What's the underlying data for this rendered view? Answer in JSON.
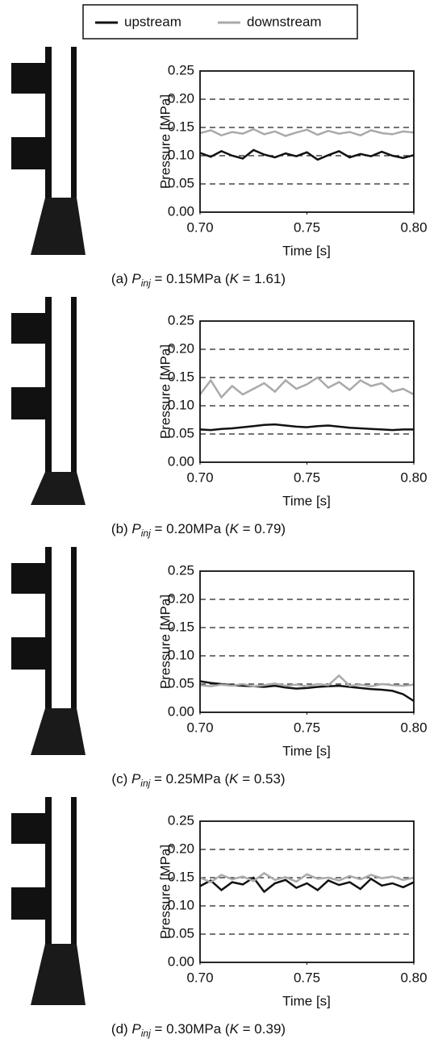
{
  "chart_data": [
    {
      "type": "line",
      "ylabel": "Pressure [MPa]",
      "xlabel": "Time [s]",
      "caption_parts": [
        "(a) ",
        "P",
        "inj",
        " = 0.15MPa (",
        "K",
        " = 1.61)"
      ],
      "xlim": [
        0.7,
        0.8
      ],
      "xticks": [
        {
          "value": 0.7,
          "label": "0.70"
        },
        0.75,
        {
          "value": 0.8,
          "label": "0.80"
        }
      ],
      "ylim": [
        0,
        0.25
      ],
      "yticks": [
        {
          "value": 0,
          "label": "0.00"
        },
        0.05,
        {
          "value": 0.1,
          "label": "0.10"
        },
        0.15,
        {
          "value": 0.2,
          "label": "0.20"
        },
        0.25
      ],
      "grid": true,
      "x": [
        0.7,
        0.705,
        0.71,
        0.715,
        0.72,
        0.725,
        0.73,
        0.735,
        0.74,
        0.745,
        0.75,
        0.755,
        0.76,
        0.765,
        0.77,
        0.775,
        0.78,
        0.785,
        0.79,
        0.795,
        0.8
      ],
      "series": [
        {
          "name": "upstream",
          "color": "#111111",
          "values": [
            0.105,
            0.098,
            0.108,
            0.1,
            0.095,
            0.11,
            0.102,
            0.097,
            0.104,
            0.099,
            0.106,
            0.093,
            0.101,
            0.108,
            0.097,
            0.103,
            0.099,
            0.107,
            0.1,
            0.096,
            0.101
          ]
        },
        {
          "name": "downstream",
          "color": "#aaaaaa",
          "values": [
            0.14,
            0.145,
            0.136,
            0.142,
            0.139,
            0.147,
            0.138,
            0.143,
            0.135,
            0.141,
            0.146,
            0.137,
            0.144,
            0.139,
            0.142,
            0.136,
            0.145,
            0.14,
            0.138,
            0.143,
            0.141
          ]
        }
      ]
    },
    {
      "type": "line",
      "ylabel": "Pressure [MPa]",
      "xlabel": "Time [s]",
      "caption_parts": [
        "(b) ",
        "P",
        "inj",
        " = 0.20MPa (",
        "K",
        " = 0.79)"
      ],
      "xlim": [
        0.7,
        0.8
      ],
      "xticks": [
        {
          "value": 0.7,
          "label": "0.70"
        },
        0.75,
        {
          "value": 0.8,
          "label": "0.80"
        }
      ],
      "ylim": [
        0,
        0.25
      ],
      "yticks": [
        {
          "value": 0,
          "label": "0.00"
        },
        0.05,
        {
          "value": 0.1,
          "label": "0.10"
        },
        0.15,
        {
          "value": 0.2,
          "label": "0.20"
        },
        0.25
      ],
      "grid": true,
      "x": [
        0.7,
        0.705,
        0.71,
        0.715,
        0.72,
        0.725,
        0.73,
        0.735,
        0.74,
        0.745,
        0.75,
        0.755,
        0.76,
        0.765,
        0.77,
        0.775,
        0.78,
        0.785,
        0.79,
        0.795,
        0.8
      ],
      "series": [
        {
          "name": "upstream",
          "color": "#111111",
          "values": [
            0.058,
            0.057,
            0.059,
            0.06,
            0.062,
            0.064,
            0.066,
            0.067,
            0.065,
            0.063,
            0.062,
            0.064,
            0.065,
            0.063,
            0.061,
            0.06,
            0.059,
            0.058,
            0.057,
            0.058,
            0.058
          ]
        },
        {
          "name": "downstream",
          "color": "#aaaaaa",
          "values": [
            0.12,
            0.145,
            0.115,
            0.135,
            0.12,
            0.13,
            0.14,
            0.125,
            0.145,
            0.13,
            0.138,
            0.15,
            0.132,
            0.142,
            0.128,
            0.145,
            0.135,
            0.14,
            0.125,
            0.13,
            0.12
          ]
        }
      ]
    },
    {
      "type": "line",
      "ylabel": "Pressure [MPa]",
      "xlabel": "Time [s]",
      "caption_parts": [
        "(c) ",
        "P",
        "inj",
        " = 0.25MPa (",
        "K",
        " = 0.53)"
      ],
      "xlim": [
        0.7,
        0.8
      ],
      "xticks": [
        {
          "value": 0.7,
          "label": "0.70"
        },
        0.75,
        {
          "value": 0.8,
          "label": "0.80"
        }
      ],
      "ylim": [
        0,
        0.25
      ],
      "yticks": [
        {
          "value": 0,
          "label": "0.00"
        },
        0.05,
        {
          "value": 0.1,
          "label": "0.10"
        },
        0.15,
        {
          "value": 0.2,
          "label": "0.20"
        },
        0.25
      ],
      "grid": true,
      "x": [
        0.7,
        0.705,
        0.71,
        0.715,
        0.72,
        0.725,
        0.73,
        0.735,
        0.74,
        0.745,
        0.75,
        0.755,
        0.76,
        0.765,
        0.77,
        0.775,
        0.78,
        0.785,
        0.79,
        0.795,
        0.8
      ],
      "series": [
        {
          "name": "upstream",
          "color": "#111111",
          "values": [
            0.055,
            0.052,
            0.05,
            0.048,
            0.047,
            0.046,
            0.045,
            0.047,
            0.044,
            0.042,
            0.043,
            0.045,
            0.046,
            0.047,
            0.045,
            0.043,
            0.041,
            0.04,
            0.038,
            0.032,
            0.02
          ]
        },
        {
          "name": "downstream",
          "color": "#aaaaaa",
          "values": [
            0.048,
            0.046,
            0.049,
            0.047,
            0.05,
            0.046,
            0.048,
            0.051,
            0.047,
            0.049,
            0.046,
            0.05,
            0.048,
            0.065,
            0.047,
            0.049,
            0.046,
            0.05,
            0.048,
            0.047,
            0.049
          ]
        }
      ]
    },
    {
      "type": "line",
      "ylabel": "Pressure [MPa]",
      "xlabel": "Time [s]",
      "caption_parts": [
        "(d) ",
        "P",
        "inj",
        " = 0.30MPa (",
        "K",
        " = 0.39)"
      ],
      "xlim": [
        0.7,
        0.8
      ],
      "xticks": [
        {
          "value": 0.7,
          "label": "0.70"
        },
        0.75,
        {
          "value": 0.8,
          "label": "0.80"
        }
      ],
      "ylim": [
        0,
        0.25
      ],
      "yticks": [
        {
          "value": 0,
          "label": "0.00"
        },
        0.05,
        {
          "value": 0.1,
          "label": "0.10"
        },
        0.15,
        {
          "value": 0.2,
          "label": "0.20"
        },
        0.25
      ],
      "grid": true,
      "x": [
        0.7,
        0.705,
        0.71,
        0.715,
        0.72,
        0.725,
        0.73,
        0.735,
        0.74,
        0.745,
        0.75,
        0.755,
        0.76,
        0.765,
        0.77,
        0.775,
        0.78,
        0.785,
        0.79,
        0.795,
        0.8
      ],
      "series": [
        {
          "name": "upstream",
          "color": "#111111",
          "values": [
            0.135,
            0.145,
            0.128,
            0.142,
            0.138,
            0.15,
            0.125,
            0.14,
            0.146,
            0.132,
            0.14,
            0.128,
            0.145,
            0.137,
            0.142,
            0.13,
            0.148,
            0.136,
            0.14,
            0.133,
            0.142
          ]
        },
        {
          "name": "downstream",
          "color": "#aaaaaa",
          "values": [
            0.15,
            0.142,
            0.155,
            0.147,
            0.152,
            0.144,
            0.158,
            0.146,
            0.151,
            0.143,
            0.156,
            0.148,
            0.15,
            0.145,
            0.153,
            0.147,
            0.155,
            0.149,
            0.152,
            0.146,
            0.15
          ]
        }
      ]
    }
  ]
}
